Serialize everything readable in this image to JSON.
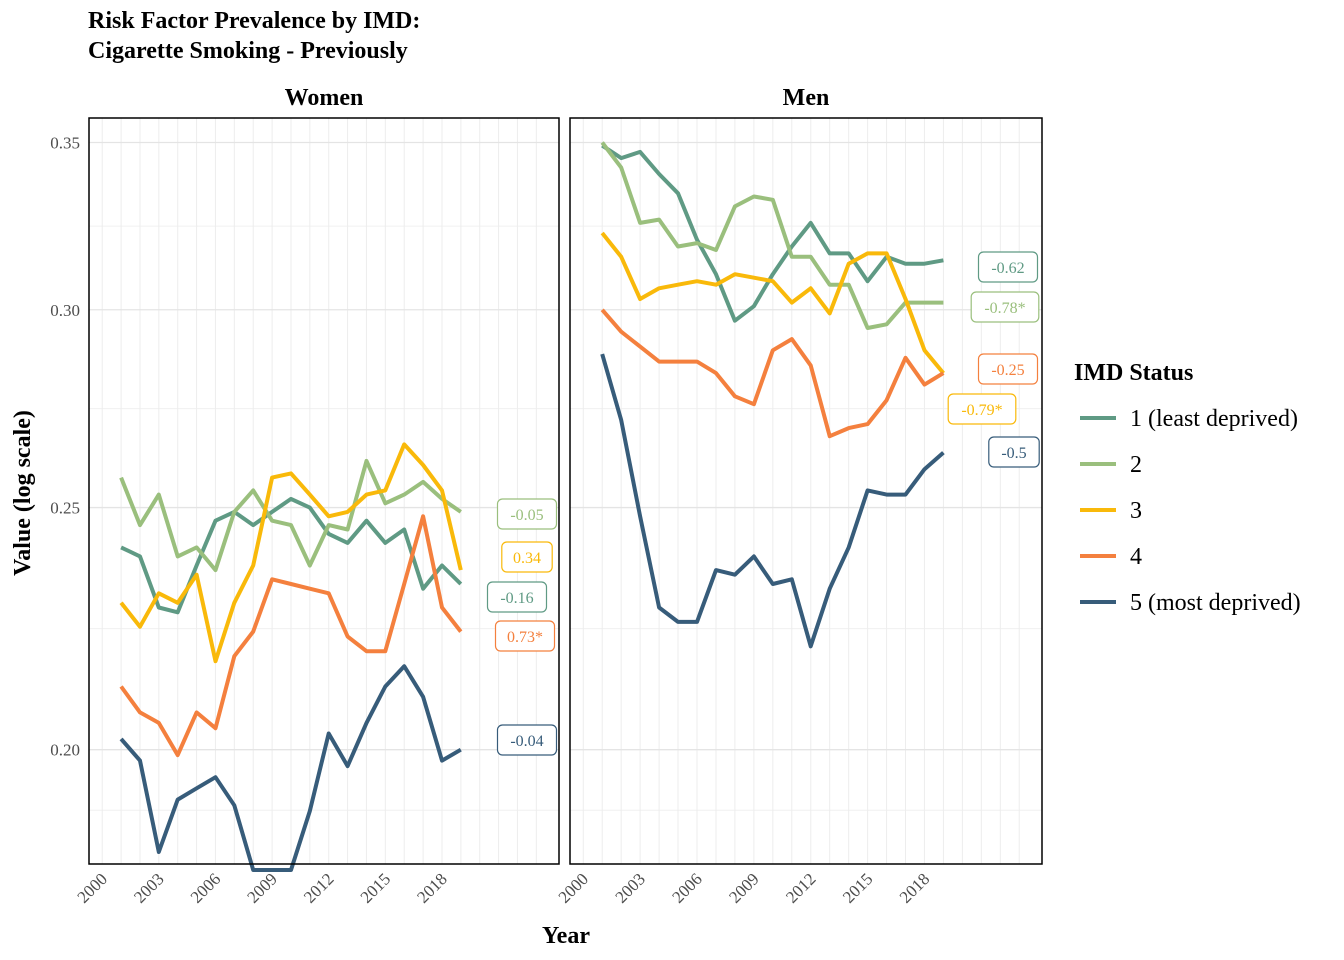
{
  "title": "Risk Factor Prevalence by IMD:",
  "subtitle": "Cigarette Smoking - Previously",
  "chart_data": {
    "type": "line",
    "xlabel": "Year",
    "ylabel": "Value (log scale)",
    "y_scale": "log",
    "ylim": [
      0.18,
      0.358
    ],
    "xlim": [
      1999.3,
      2024.2
    ],
    "x_ticks": [
      "2000",
      "2003",
      "2006",
      "2009",
      "2012",
      "2015",
      "2018"
    ],
    "y_ticks": [
      "0.20",
      "0.25",
      "0.30",
      "0.35"
    ],
    "grid": true,
    "legend": {
      "title": "IMD Status",
      "position": "right",
      "entries": [
        "1 (least deprived)",
        "2",
        "3",
        "4",
        "5 (most deprived)"
      ]
    },
    "colors": [
      "#5f9a84",
      "#9abf7d",
      "#f9b90a",
      "#f4803e",
      "#375c7a"
    ],
    "x": [
      2001,
      2002,
      2003,
      2004,
      2005,
      2006,
      2007,
      2008,
      2009,
      2010,
      2011,
      2012,
      2013,
      2014,
      2015,
      2016,
      2017,
      2018,
      2019
    ],
    "panels": [
      {
        "name": "Women",
        "series": [
          {
            "name": "1 (least deprived)",
            "values": [
              0.241,
              0.239,
              0.228,
              0.227,
              0.237,
              0.247,
              0.249,
              0.246,
              0.249,
              0.252,
              0.25,
              0.244,
              0.242,
              0.247,
              0.242,
              0.245,
              0.232,
              0.237,
              0.233
            ]
          },
          {
            "name": "2",
            "values": [
              0.257,
              0.246,
              0.253,
              0.239,
              0.241,
              0.236,
              0.249,
              0.254,
              0.247,
              0.246,
              0.237,
              0.246,
              0.245,
              0.261,
              0.251,
              0.253,
              0.256,
              0.252,
              0.249
            ]
          },
          {
            "name": "3",
            "values": [
              0.229,
              0.224,
              0.231,
              0.229,
              0.235,
              0.217,
              0.229,
              0.237,
              0.257,
              0.258,
              0.253,
              0.248,
              0.249,
              0.253,
              0.254,
              0.265,
              0.26,
              0.254,
              0.236
            ]
          },
          {
            "name": "4",
            "values": [
              0.212,
              0.207,
              0.205,
              0.199,
              0.207,
              0.204,
              0.218,
              0.223,
              0.234,
              0.233,
              0.232,
              0.231,
              0.222,
              0.219,
              0.219,
              0.233,
              0.248,
              0.228,
              0.223
            ]
          },
          {
            "name": "5 (most deprived)",
            "values": [
              0.202,
              0.198,
              0.182,
              0.191,
              0.193,
              0.195,
              0.19,
              0.179,
              0.179,
              0.179,
              0.189,
              0.203,
              0.197,
              0.205,
              0.212,
              0.216,
              0.21,
              0.198,
              0.2
            ]
          }
        ],
        "end_labels": [
          {
            "text": "-0.05",
            "color": "#9abf7d"
          },
          {
            "text": "0.34",
            "color": "#f9b90a"
          },
          {
            "text": "-0.16",
            "color": "#5f9a84"
          },
          {
            "text": "0.73*",
            "color": "#f4803e"
          },
          {
            "text": "-0.04",
            "color": "#375c7a"
          }
        ]
      },
      {
        "name": "Men",
        "series": [
          {
            "name": "1 (least deprived)",
            "values": [
              0.349,
              0.345,
              0.347,
              0.34,
              0.334,
              0.32,
              0.31,
              0.297,
              0.301,
              0.31,
              0.318,
              0.325,
              0.316,
              0.316,
              0.308,
              0.315,
              0.313,
              0.313,
              0.314
            ]
          },
          {
            "name": "2",
            "values": [
              0.35,
              0.342,
              0.325,
              0.326,
              0.318,
              0.319,
              0.317,
              0.33,
              0.333,
              0.332,
              0.315,
              0.315,
              0.307,
              0.307,
              0.295,
              0.296,
              0.302,
              0.302,
              0.302
            ]
          },
          {
            "name": "3",
            "values": [
              0.322,
              0.315,
              0.303,
              0.306,
              0.307,
              0.308,
              0.307,
              0.31,
              0.309,
              0.308,
              0.302,
              0.306,
              0.299,
              0.313,
              0.316,
              0.316,
              0.303,
              0.289,
              0.283
            ]
          },
          {
            "name": "4",
            "values": [
              0.3,
              0.294,
              0.29,
              0.286,
              0.286,
              0.286,
              0.283,
              0.277,
              0.275,
              0.289,
              0.292,
              0.285,
              0.267,
              0.269,
              0.27,
              0.276,
              0.287,
              0.28,
              0.283
            ]
          },
          {
            "name": "5 (most deprived)",
            "values": [
              0.288,
              0.271,
              0.248,
              0.228,
              0.225,
              0.225,
              0.236,
              0.235,
              0.239,
              0.233,
              0.234,
              0.22,
              0.232,
              0.241,
              0.254,
              0.253,
              0.253,
              0.259,
              0.263
            ]
          }
        ],
        "end_labels": [
          {
            "text": "-0.62",
            "color": "#5f9a84"
          },
          {
            "text": "-0.78*",
            "color": "#9abf7d"
          },
          {
            "text": "-0.25",
            "color": "#f4803e"
          },
          {
            "text": "-0.79*",
            "color": "#f9b90a"
          },
          {
            "text": "-0.5",
            "color": "#375c7a"
          }
        ]
      }
    ]
  }
}
